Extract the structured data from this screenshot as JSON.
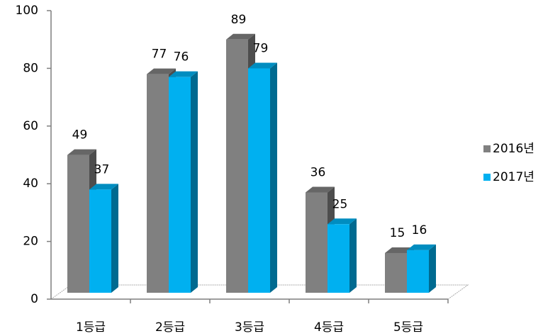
{
  "chart_data": {
    "type": "bar3d",
    "categories": [
      "1등급",
      "2등급",
      "3등급",
      "4등급",
      "5등급"
    ],
    "series": [
      {
        "name": "2016년",
        "color": "#808080",
        "values": [
          49,
          77,
          89,
          36,
          15
        ]
      },
      {
        "name": "2017년",
        "color": "#00b0f0",
        "values": [
          37,
          76,
          79,
          25,
          16
        ]
      }
    ],
    "ylim": [
      0,
      100
    ],
    "yticks": [
      0,
      20,
      40,
      60,
      80,
      100
    ],
    "legend": "right"
  }
}
